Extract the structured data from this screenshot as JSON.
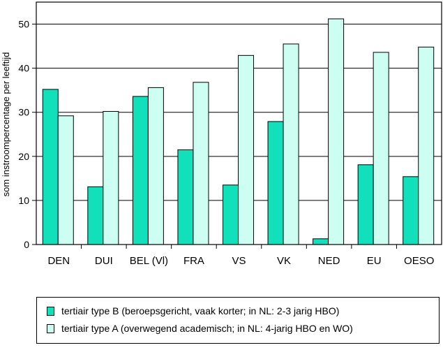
{
  "chart_data": {
    "type": "bar",
    "title": "",
    "xlabel": "",
    "ylabel": "som instroompercentage per leeftijd",
    "ylim": [
      0,
      55
    ],
    "yticks": [
      0,
      10,
      20,
      30,
      40,
      50
    ],
    "grid": true,
    "legend_position": "bottom",
    "categories": [
      "DEN",
      "DUI",
      "BEL (Vl)",
      "FRA",
      "VS",
      "VK",
      "NED",
      "EU",
      "OESO"
    ],
    "series": [
      {
        "name": "tertiair type B (beroepsgericht, vaak korter; in NL: 2-3 jarig HBO)",
        "color": "#12e0bb",
        "values": [
          35.2,
          13.1,
          33.6,
          21.5,
          13.5,
          27.9,
          1.3,
          18.1,
          15.4
        ]
      },
      {
        "name": "tertiair type A (overwegend academisch; in NL: 4-jarig HBO en WO)",
        "color": "#ccfff1",
        "values": [
          29.2,
          30.2,
          35.6,
          36.8,
          42.9,
          45.5,
          51.2,
          43.6,
          44.8
        ]
      }
    ]
  }
}
